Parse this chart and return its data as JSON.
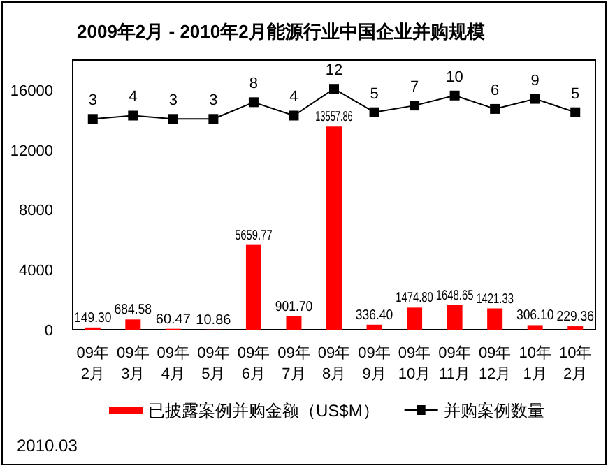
{
  "chart_data": {
    "type": "bar",
    "title": "2009年2月 - 2010年2月能源行业中国企业并购规模",
    "categories": [
      "09年2月",
      "09年3月",
      "09年4月",
      "09年5月",
      "09年6月",
      "09年7月",
      "09年8月",
      "09年9月",
      "09年10月",
      "09年11月",
      "09年12月",
      "10年1月",
      "10年2月"
    ],
    "series": [
      {
        "name": "已披露案例并购金额（US$M）",
        "color": "#ff0000",
        "values": [
          149.3,
          684.58,
          60.47,
          10.86,
          5659.77,
          901.7,
          13557.86,
          336.4,
          1474.8,
          1648.65,
          1421.33,
          306.1,
          229.36
        ],
        "value_labels": [
          "149.30",
          "684.58",
          "60.47",
          "10.86",
          "5659.77",
          "901.70",
          "13557.86",
          "336.40",
          "1474.80",
          "1648.65",
          "1421.33",
          "306.10",
          "229.36"
        ]
      },
      {
        "name": "并购案例数量",
        "type": "line",
        "axis": "y2",
        "color": "#000000",
        "marker": "square",
        "values": [
          3,
          4,
          3,
          3,
          8,
          4,
          12,
          5,
          7,
          10,
          6,
          9,
          5
        ]
      }
    ],
    "ylim": [
      0,
      18000
    ],
    "yticks": [
      0,
      4000,
      8000,
      12000,
      16000
    ],
    "y2lim": [
      -60,
      20.6
    ],
    "data_labels": true,
    "legend": "bottom",
    "grid": false,
    "tick_labels": "xy",
    "annotations": [
      "2010.03"
    ]
  }
}
